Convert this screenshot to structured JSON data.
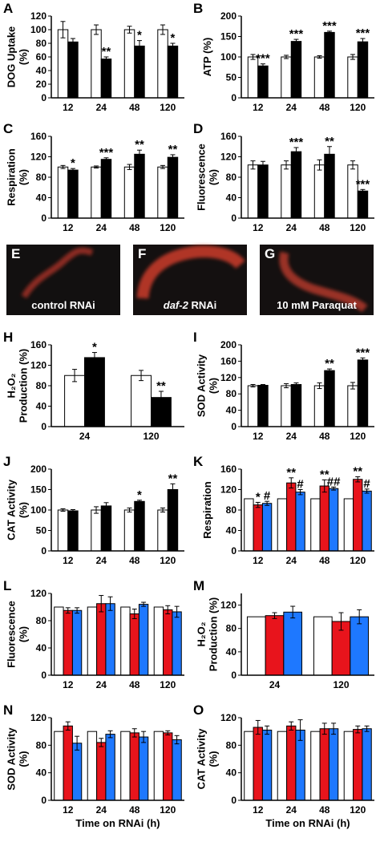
{
  "chart_data": [
    {
      "type": "bar",
      "letter": "A",
      "ylabel": [
        "DOG Uptake",
        "(%)"
      ],
      "categories": [
        "12",
        "24",
        "48",
        "120"
      ],
      "ylim": [
        0,
        120
      ],
      "yticks": [
        0,
        20,
        40,
        60,
        80,
        100,
        120
      ],
      "series": [
        {
          "color": "#ffffff",
          "values": [
            100,
            100,
            100,
            100
          ],
          "errors": [
            12,
            7,
            5,
            7
          ]
        },
        {
          "color": "#000000",
          "values": [
            82,
            57,
            76,
            76
          ],
          "errors": [
            5,
            3,
            8,
            4
          ],
          "labels": [
            null,
            "**",
            "*",
            "*"
          ]
        }
      ]
    },
    {
      "type": "bar",
      "letter": "B",
      "ylabel": [
        "ATP (%)"
      ],
      "categories": [
        "12",
        "24",
        "48",
        "120"
      ],
      "ylim": [
        0,
        200
      ],
      "yticks": [
        0,
        50,
        100,
        150,
        200
      ],
      "series": [
        {
          "color": "#ffffff",
          "values": [
            100,
            100,
            100,
            100
          ],
          "errors": [
            6,
            4,
            3,
            6
          ]
        },
        {
          "color": "#000000",
          "values": [
            78,
            138,
            160,
            137
          ],
          "errors": [
            5,
            5,
            3,
            8
          ],
          "labels": [
            "***",
            "***",
            "***",
            "***"
          ]
        }
      ]
    },
    {
      "type": "bar",
      "letter": "C",
      "ylabel": [
        "Respiration",
        "(%)"
      ],
      "categories": [
        "12",
        "24",
        "48",
        "120"
      ],
      "ylim": [
        0,
        160
      ],
      "yticks": [
        0,
        40,
        80,
        120,
        160
      ],
      "series": [
        {
          "color": "#ffffff",
          "values": [
            100,
            100,
            100,
            100
          ],
          "errors": [
            3,
            2,
            5,
            3
          ]
        },
        {
          "color": "#000000",
          "values": [
            94,
            115,
            125,
            119
          ],
          "errors": [
            3,
            3,
            8,
            5
          ],
          "labels": [
            "*",
            "***",
            "**",
            "**"
          ]
        }
      ]
    },
    {
      "type": "bar",
      "letter": "D",
      "ylabel": [
        "Fluorescence",
        "(%)"
      ],
      "categories": [
        "12",
        "24",
        "48",
        "120"
      ],
      "ylim": [
        0,
        160
      ],
      "yticks": [
        0,
        40,
        80,
        120,
        160
      ],
      "series": [
        {
          "color": "#ffffff",
          "values": [
            104,
            104,
            104,
            104
          ],
          "errors": [
            8,
            8,
            10,
            8
          ]
        },
        {
          "color": "#000000",
          "values": [
            104,
            130,
            125,
            53
          ],
          "errors": [
            7,
            8,
            15,
            3
          ],
          "labels": [
            null,
            "***",
            "**",
            "***"
          ]
        }
      ]
    },
    {
      "type": "bar",
      "letter": "H",
      "ylabel": [
        "H₂O₂",
        "Production (%)"
      ],
      "categories": [
        "24",
        "120"
      ],
      "ylim": [
        0,
        160
      ],
      "yticks": [
        0,
        40,
        80,
        120,
        160
      ],
      "series": [
        {
          "color": "#ffffff",
          "values": [
            100,
            100
          ],
          "errors": [
            12,
            10
          ]
        },
        {
          "color": "#000000",
          "values": [
            135,
            57
          ],
          "errors": [
            10,
            12
          ],
          "labels": [
            "*",
            "**"
          ]
        }
      ]
    },
    {
      "type": "bar",
      "letter": "I",
      "ylabel": [
        "SOD Activity",
        "(%)"
      ],
      "categories": [
        "12",
        "24",
        "48",
        "120"
      ],
      "ylim": [
        0,
        200
      ],
      "yticks": [
        0,
        40,
        80,
        120,
        160,
        200
      ],
      "series": [
        {
          "color": "#ffffff",
          "values": [
            100,
            100,
            100,
            100
          ],
          "errors": [
            3,
            5,
            7,
            8
          ]
        },
        {
          "color": "#000000",
          "values": [
            101,
            103,
            137,
            163
          ],
          "errors": [
            2,
            4,
            4,
            5
          ],
          "labels": [
            null,
            null,
            "**",
            "***"
          ]
        }
      ]
    },
    {
      "type": "bar",
      "letter": "J",
      "ylabel": [
        "CAT Activity",
        "(%)"
      ],
      "categories": [
        "12",
        "24",
        "48",
        "120"
      ],
      "ylim": [
        0,
        200
      ],
      "yticks": [
        0,
        50,
        100,
        150,
        200
      ],
      "series": [
        {
          "color": "#ffffff",
          "values": [
            100,
            100,
            100,
            100
          ],
          "errors": [
            3,
            8,
            5,
            5
          ]
        },
        {
          "color": "#000000",
          "values": [
            98,
            110,
            121,
            150
          ],
          "errors": [
            3,
            8,
            3,
            14
          ],
          "labels": [
            null,
            null,
            "*",
            "**"
          ]
        }
      ]
    },
    {
      "type": "bar",
      "letter": "K",
      "ylabel": [
        "Respiration"
      ],
      "categories": [
        "12",
        "24",
        "48",
        "120"
      ],
      "ylim": [
        0,
        160
      ],
      "yticks": [
        0,
        40,
        80,
        120,
        160
      ],
      "series": [
        {
          "color": "#ffffff",
          "values": [
            102,
            102,
            102,
            102
          ]
        },
        {
          "color": "#e8141c",
          "values": [
            90,
            133,
            127,
            140
          ],
          "errors": [
            5,
            10,
            12,
            5
          ],
          "labels": [
            "*",
            "**",
            "**",
            "**"
          ]
        },
        {
          "color": "#1e78ff",
          "values": [
            93,
            115,
            122,
            117
          ],
          "errors": [
            4,
            5,
            3,
            4
          ],
          "labels": [
            "#",
            "#",
            "##",
            "#"
          ]
        }
      ]
    },
    {
      "type": "bar",
      "letter": "L",
      "ylabel": [
        "Fluorescence",
        "(%)"
      ],
      "categories": [
        "12",
        "24",
        "48",
        "120"
      ],
      "ylim": [
        0,
        120
      ],
      "yticks": [
        0,
        40,
        80,
        120
      ],
      "series": [
        {
          "color": "#ffffff",
          "values": [
            100,
            100,
            100,
            100
          ]
        },
        {
          "color": "#e8141c",
          "values": [
            95,
            105,
            90,
            96
          ],
          "errors": [
            4,
            12,
            7,
            6
          ]
        },
        {
          "color": "#1e78ff",
          "values": [
            95,
            105,
            104,
            93
          ],
          "errors": [
            4,
            10,
            3,
            8
          ]
        }
      ]
    },
    {
      "type": "bar",
      "letter": "M",
      "ylabel": [
        "H₂O₂",
        "Production (%)"
      ],
      "categories": [
        "24",
        "120"
      ],
      "ylim": [
        0,
        140
      ],
      "yticks": [
        0,
        40,
        80,
        120
      ],
      "series": [
        {
          "color": "#ffffff",
          "values": [
            100,
            100
          ]
        },
        {
          "color": "#e8141c",
          "values": [
            102,
            92
          ],
          "errors": [
            5,
            15
          ]
        },
        {
          "color": "#1e78ff",
          "values": [
            108,
            100
          ],
          "errors": [
            10,
            12
          ]
        }
      ]
    },
    {
      "type": "bar",
      "letter": "N",
      "ylabel": [
        "SOD Activity",
        "(%)"
      ],
      "xlabel": "Time on RNAi (h)",
      "categories": [
        "12",
        "24",
        "48",
        "120"
      ],
      "ylim": [
        0,
        120
      ],
      "yticks": [
        0,
        40,
        80,
        120
      ],
      "series": [
        {
          "color": "#ffffff",
          "values": [
            100,
            100,
            100,
            100
          ]
        },
        {
          "color": "#e8141c",
          "values": [
            108,
            84,
            98,
            98
          ],
          "errors": [
            6,
            6,
            6,
            3
          ]
        },
        {
          "color": "#1e78ff",
          "values": [
            83,
            96,
            92,
            88
          ],
          "errors": [
            10,
            5,
            8,
            6
          ]
        }
      ]
    },
    {
      "type": "bar",
      "letter": "O",
      "ylabel": [
        "CAT Activity",
        "(%)"
      ],
      "xlabel": "Time on RNAi (h)",
      "categories": [
        "12",
        "24",
        "48",
        "120"
      ],
      "ylim": [
        0,
        120
      ],
      "yticks": [
        0,
        40,
        80,
        120
      ],
      "series": [
        {
          "color": "#ffffff",
          "values": [
            100,
            100,
            100,
            100
          ]
        },
        {
          "color": "#e8141c",
          "values": [
            106,
            108,
            104,
            103
          ],
          "errors": [
            10,
            6,
            8,
            5
          ]
        },
        {
          "color": "#1e78ff",
          "values": [
            102,
            102,
            104,
            104
          ],
          "errors": [
            6,
            15,
            8,
            4
          ]
        }
      ]
    }
  ],
  "images": [
    {
      "letter": "E",
      "caption": "control RNAi"
    },
    {
      "letter": "F",
      "caption_italic": "daf-2",
      "caption": "RNAi"
    },
    {
      "letter": "G",
      "caption": "10 mM Paraquat"
    }
  ]
}
